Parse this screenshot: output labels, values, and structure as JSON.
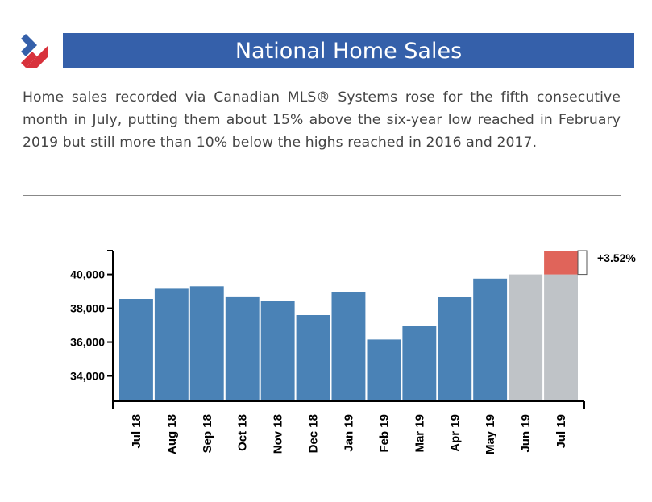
{
  "header": {
    "title": "National Home Sales"
  },
  "description": "Home sales recorded via Canadian MLS® Systems rose for the fifth consecutive month in July, putting them about 15% above the six-year low reached in February 2019 but still more than 10% below the highs reached in 2016 and 2017.",
  "colors": {
    "title_bar": "#3560aa",
    "bar_actual": "#4a82b6",
    "bar_recent": "#bfc3c7",
    "increase": "#e0645a",
    "logo_top": "#3560aa",
    "logo_bottom": "#d8323c"
  },
  "chart_data": {
    "type": "bar",
    "categories": [
      "Jul 18",
      "Aug 18",
      "Sep 18",
      "Oct 18",
      "Nov 18",
      "Dec 18",
      "Jan 19",
      "Feb 19",
      "Mar 19",
      "Apr 19",
      "May 19",
      "Jun 19",
      "Jul 19"
    ],
    "values": [
      38550,
      39150,
      39300,
      38700,
      38450,
      37600,
      38950,
      36150,
      36950,
      38650,
      39750,
      40000,
      40000
    ],
    "highlight_categories": [
      "Jun 19",
      "Jul 19"
    ],
    "increase": {
      "category": "Jul 19",
      "base": 40000,
      "top": 41410,
      "label": "+3.52%"
    },
    "yticks": [
      34000,
      36000,
      38000,
      40000
    ],
    "ytick_labels": [
      "34,000",
      "36,000",
      "38,000",
      "40,000"
    ],
    "ylim": [
      32500,
      41410
    ],
    "grid": false,
    "title": "",
    "xlabel": "",
    "ylabel": ""
  }
}
